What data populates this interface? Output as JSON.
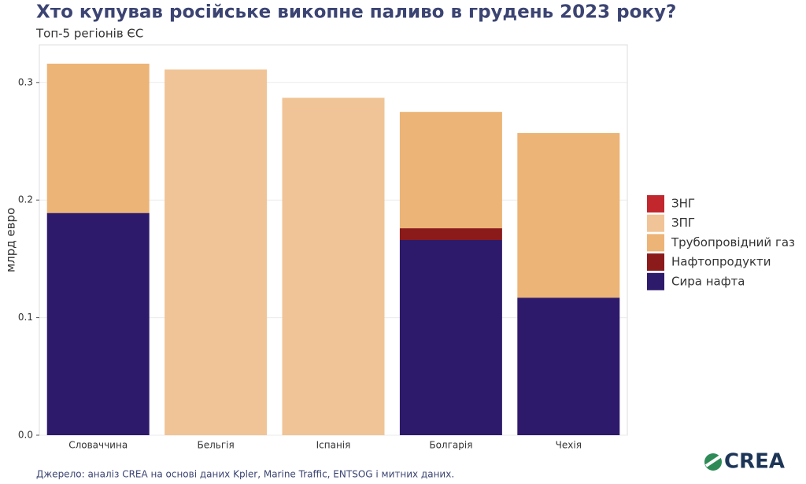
{
  "chart_data": {
    "type": "stacked_bar",
    "title": "Хто купував російське викопне паливо в грудень 2023 року?",
    "subtitle": "Топ-5 регіонів ЄС",
    "y_label": "млрд евро",
    "source": "Джерело: аналіз CREA на основі даних Kpler, Marine Traffic, ENTSOG і митних даних.",
    "logo": "CREA",
    "categories": [
      "Словаччина",
      "Бельгія",
      "Іспанія",
      "Болгарія",
      "Чехія"
    ],
    "series": [
      {
        "name": "ЗНГ",
        "color": "#c1272d",
        "values": [
          0,
          0,
          0,
          0,
          0
        ]
      },
      {
        "name": "ЗПГ",
        "color": "#f0c496",
        "values": [
          0,
          0.311,
          0.287,
          0,
          0
        ]
      },
      {
        "name": "Трубопровідний газ",
        "color": "#ecb476",
        "values": [
          0.127,
          0,
          0,
          0.099,
          0.14
        ]
      },
      {
        "name": "Нафтопродукти",
        "color": "#8b1a1a",
        "values": [
          0,
          0,
          0,
          0.01,
          0
        ]
      },
      {
        "name": "Сира нафта",
        "color": "#2e1a6b",
        "values": [
          0.189,
          0,
          0,
          0.166,
          0.117
        ]
      }
    ],
    "ylim": [
      0,
      0.332
    ],
    "yticks": [
      {
        "value": 0,
        "label": "0.0"
      },
      0.1,
      0.2,
      0.3
    ],
    "grid": true
  }
}
